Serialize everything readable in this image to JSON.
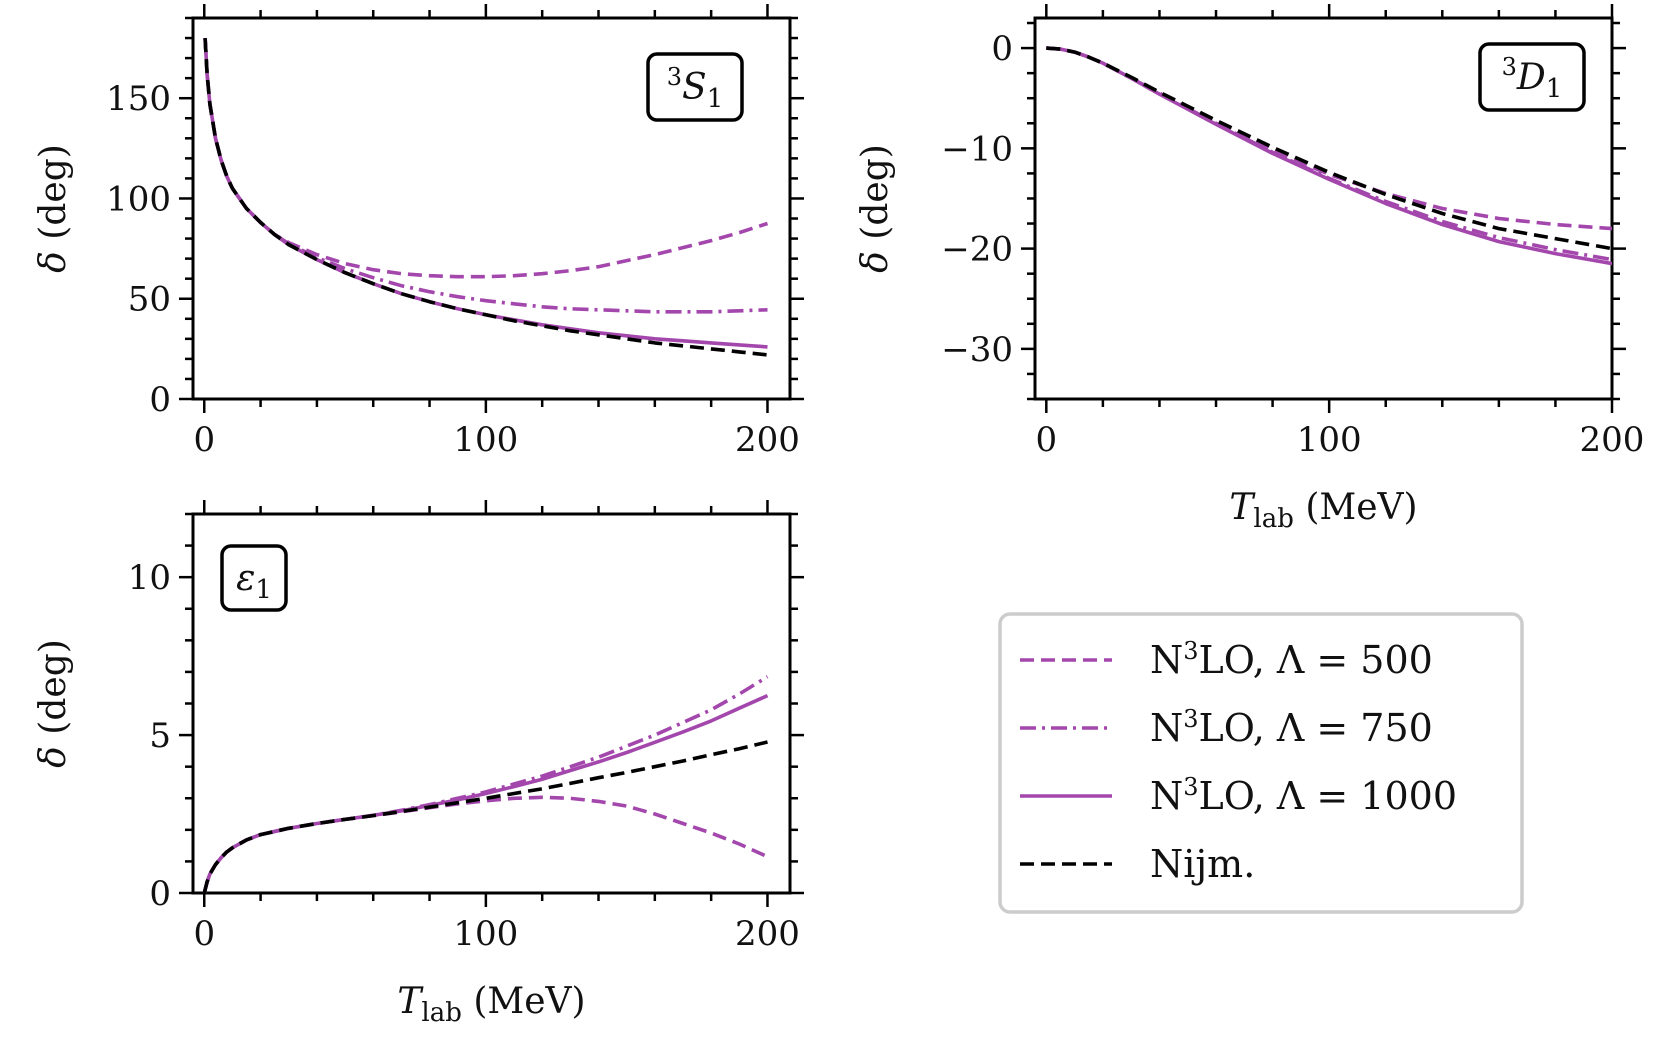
{
  "colors": {
    "purple": "#a347ad",
    "black": "#000000",
    "legend_border": "#cccccc"
  },
  "chart_data": [
    {
      "id": "3S1",
      "type": "line",
      "tag": "3S1",
      "xlabel": "",
      "ylabel": "δ (deg)",
      "xlim": [
        -4,
        208
      ],
      "ylim": [
        0,
        190
      ],
      "xticks": [
        0,
        100,
        200
      ],
      "xtick_labels": [
        "0",
        "100",
        "200"
      ],
      "yticks": [
        0,
        50,
        100,
        150
      ],
      "ytick_labels": [
        "0",
        "50",
        "100",
        "150"
      ],
      "x": [
        0.3,
        1,
        2,
        4,
        6,
        8,
        10,
        15,
        20,
        25,
        30,
        40,
        50,
        60,
        70,
        80,
        90,
        100,
        110,
        120,
        130,
        140,
        150,
        160,
        170,
        180,
        190,
        200
      ],
      "series": [
        {
          "name": "N³LO, Λ = 500",
          "style": "dashed",
          "color": "purple",
          "values": [
            180,
            162,
            147,
            130,
            119,
            111,
            105,
            95,
            88,
            82,
            78,
            72,
            67.5,
            64.5,
            62.5,
            61.5,
            61,
            61,
            61.5,
            62.5,
            64,
            66,
            69,
            72,
            75.5,
            79,
            83,
            87.5
          ]
        },
        {
          "name": "N³LO, Λ = 750",
          "style": "dashdot",
          "color": "purple",
          "values": [
            180,
            162,
            147,
            130,
            119,
            111,
            105,
            95,
            88,
            82,
            77.5,
            70.5,
            65,
            60.5,
            56.5,
            53.5,
            51,
            49,
            47.5,
            46,
            45,
            44.5,
            44,
            43.5,
            43.5,
            43.5,
            44,
            44.5
          ]
        },
        {
          "name": "N³LO, Λ = 1000",
          "style": "solid",
          "color": "purple",
          "values": [
            180,
            162,
            147,
            130,
            119,
            111,
            105,
            95,
            88,
            82,
            77,
            69.5,
            63,
            57.5,
            52.5,
            48.5,
            45,
            42,
            39.5,
            37,
            35,
            33,
            31.5,
            30,
            29,
            28,
            27,
            26
          ]
        },
        {
          "name": "Nijm.",
          "style": "dashed",
          "color": "black",
          "values": [
            180,
            162,
            147,
            130,
            119,
            111,
            105,
            95,
            88,
            82,
            77,
            69.5,
            63,
            57.5,
            52.5,
            48.5,
            45,
            42,
            39,
            36.5,
            34,
            32,
            30,
            28,
            26.5,
            25,
            23.5,
            22
          ]
        }
      ]
    },
    {
      "id": "3D1",
      "type": "line",
      "tag": "3D1",
      "xlabel": "T_lab (MeV)",
      "ylabel": "δ (deg)",
      "xlim": [
        -4,
        200
      ],
      "ylim": [
        -35,
        3
      ],
      "xticks": [
        0,
        100,
        200
      ],
      "xtick_labels": [
        "0",
        "100",
        "200"
      ],
      "yticks": [
        0,
        -10,
        -20,
        -30
      ],
      "ytick_labels": [
        "0",
        "−10",
        "−20",
        "−30"
      ],
      "x": [
        0,
        5,
        10,
        15,
        20,
        30,
        40,
        50,
        60,
        80,
        100,
        120,
        140,
        160,
        180,
        200
      ],
      "series": [
        {
          "name": "N³LO, Λ = 500",
          "style": "dashed",
          "color": "purple",
          "values": [
            0,
            -0.1,
            -0.4,
            -0.9,
            -1.5,
            -3,
            -4.5,
            -6,
            -7.4,
            -10.2,
            -12.6,
            -14.5,
            -16,
            -17,
            -17.6,
            -18
          ]
        },
        {
          "name": "N³LO, Λ = 750",
          "style": "dashdot",
          "color": "purple",
          "values": [
            0,
            -0.1,
            -0.4,
            -0.9,
            -1.5,
            -3,
            -4.5,
            -6,
            -7.5,
            -10.4,
            -13,
            -15.3,
            -17.3,
            -18.9,
            -20.1,
            -21.1
          ]
        },
        {
          "name": "N³LO, Λ = 1000",
          "style": "solid",
          "color": "purple",
          "values": [
            0,
            -0.1,
            -0.4,
            -0.9,
            -1.5,
            -3,
            -4.6,
            -6.1,
            -7.6,
            -10.5,
            -13.1,
            -15.5,
            -17.6,
            -19.3,
            -20.5,
            -21.5
          ]
        },
        {
          "name": "Nijm.",
          "style": "dashed",
          "color": "black",
          "values": [
            0,
            -0.1,
            -0.4,
            -0.9,
            -1.5,
            -2.9,
            -4.4,
            -5.8,
            -7.2,
            -9.9,
            -12.4,
            -14.6,
            -16.5,
            -18,
            -19,
            -20
          ]
        }
      ]
    },
    {
      "id": "eps1",
      "type": "line",
      "tag": "ε1",
      "xlabel": "T_lab (MeV)",
      "ylabel": "δ (deg)",
      "xlim": [
        -4,
        208
      ],
      "ylim": [
        0,
        12
      ],
      "xticks": [
        0,
        100,
        200
      ],
      "xtick_labels": [
        "0",
        "100",
        "200"
      ],
      "yticks": [
        0,
        5,
        10
      ],
      "ytick_labels": [
        "0",
        "5",
        "10"
      ],
      "x": [
        0,
        1,
        2,
        4,
        6,
        8,
        10,
        15,
        20,
        30,
        40,
        50,
        60,
        70,
        80,
        90,
        100,
        110,
        120,
        130,
        140,
        150,
        160,
        170,
        180,
        190,
        200
      ],
      "series": [
        {
          "name": "N³LO, Λ = 500",
          "style": "dashed",
          "color": "purple",
          "values": [
            0,
            0.35,
            0.6,
            0.9,
            1.12,
            1.3,
            1.43,
            1.68,
            1.85,
            2.05,
            2.2,
            2.33,
            2.45,
            2.57,
            2.7,
            2.82,
            2.92,
            3.0,
            3.03,
            3.0,
            2.9,
            2.75,
            2.5,
            2.2,
            1.9,
            1.55,
            1.15
          ]
        },
        {
          "name": "N³LO, Λ = 750",
          "style": "dashdot",
          "color": "purple",
          "values": [
            0,
            0.35,
            0.6,
            0.9,
            1.12,
            1.3,
            1.43,
            1.68,
            1.85,
            2.05,
            2.2,
            2.33,
            2.46,
            2.62,
            2.8,
            3.0,
            3.2,
            3.45,
            3.7,
            4.0,
            4.3,
            4.65,
            5.0,
            5.4,
            5.8,
            6.3,
            6.85
          ]
        },
        {
          "name": "N³LO, Λ = 1000",
          "style": "solid",
          "color": "purple",
          "values": [
            0,
            0.35,
            0.6,
            0.9,
            1.12,
            1.3,
            1.43,
            1.68,
            1.85,
            2.05,
            2.2,
            2.33,
            2.46,
            2.6,
            2.77,
            2.95,
            3.15,
            3.37,
            3.6,
            3.88,
            4.15,
            4.45,
            4.77,
            5.1,
            5.45,
            5.85,
            6.25
          ]
        },
        {
          "name": "Nijm.",
          "style": "dashed",
          "color": "black",
          "values": [
            0,
            0.35,
            0.6,
            0.9,
            1.12,
            1.3,
            1.43,
            1.68,
            1.85,
            2.05,
            2.2,
            2.33,
            2.45,
            2.58,
            2.72,
            2.86,
            3.0,
            3.15,
            3.3,
            3.47,
            3.65,
            3.82,
            4.0,
            4.18,
            4.38,
            4.57,
            4.78
          ]
        }
      ]
    }
  ],
  "legend": {
    "placement": "lower-right",
    "entries": [
      {
        "label": "N³LO, Λ = 500",
        "style": "dashed",
        "color": "purple"
      },
      {
        "label": "N³LO, Λ = 750",
        "style": "dashdot",
        "color": "purple"
      },
      {
        "label": "N³LO, Λ = 1000",
        "style": "solid",
        "color": "purple"
      },
      {
        "label": "Nijm.",
        "style": "dashed",
        "color": "black"
      }
    ]
  }
}
